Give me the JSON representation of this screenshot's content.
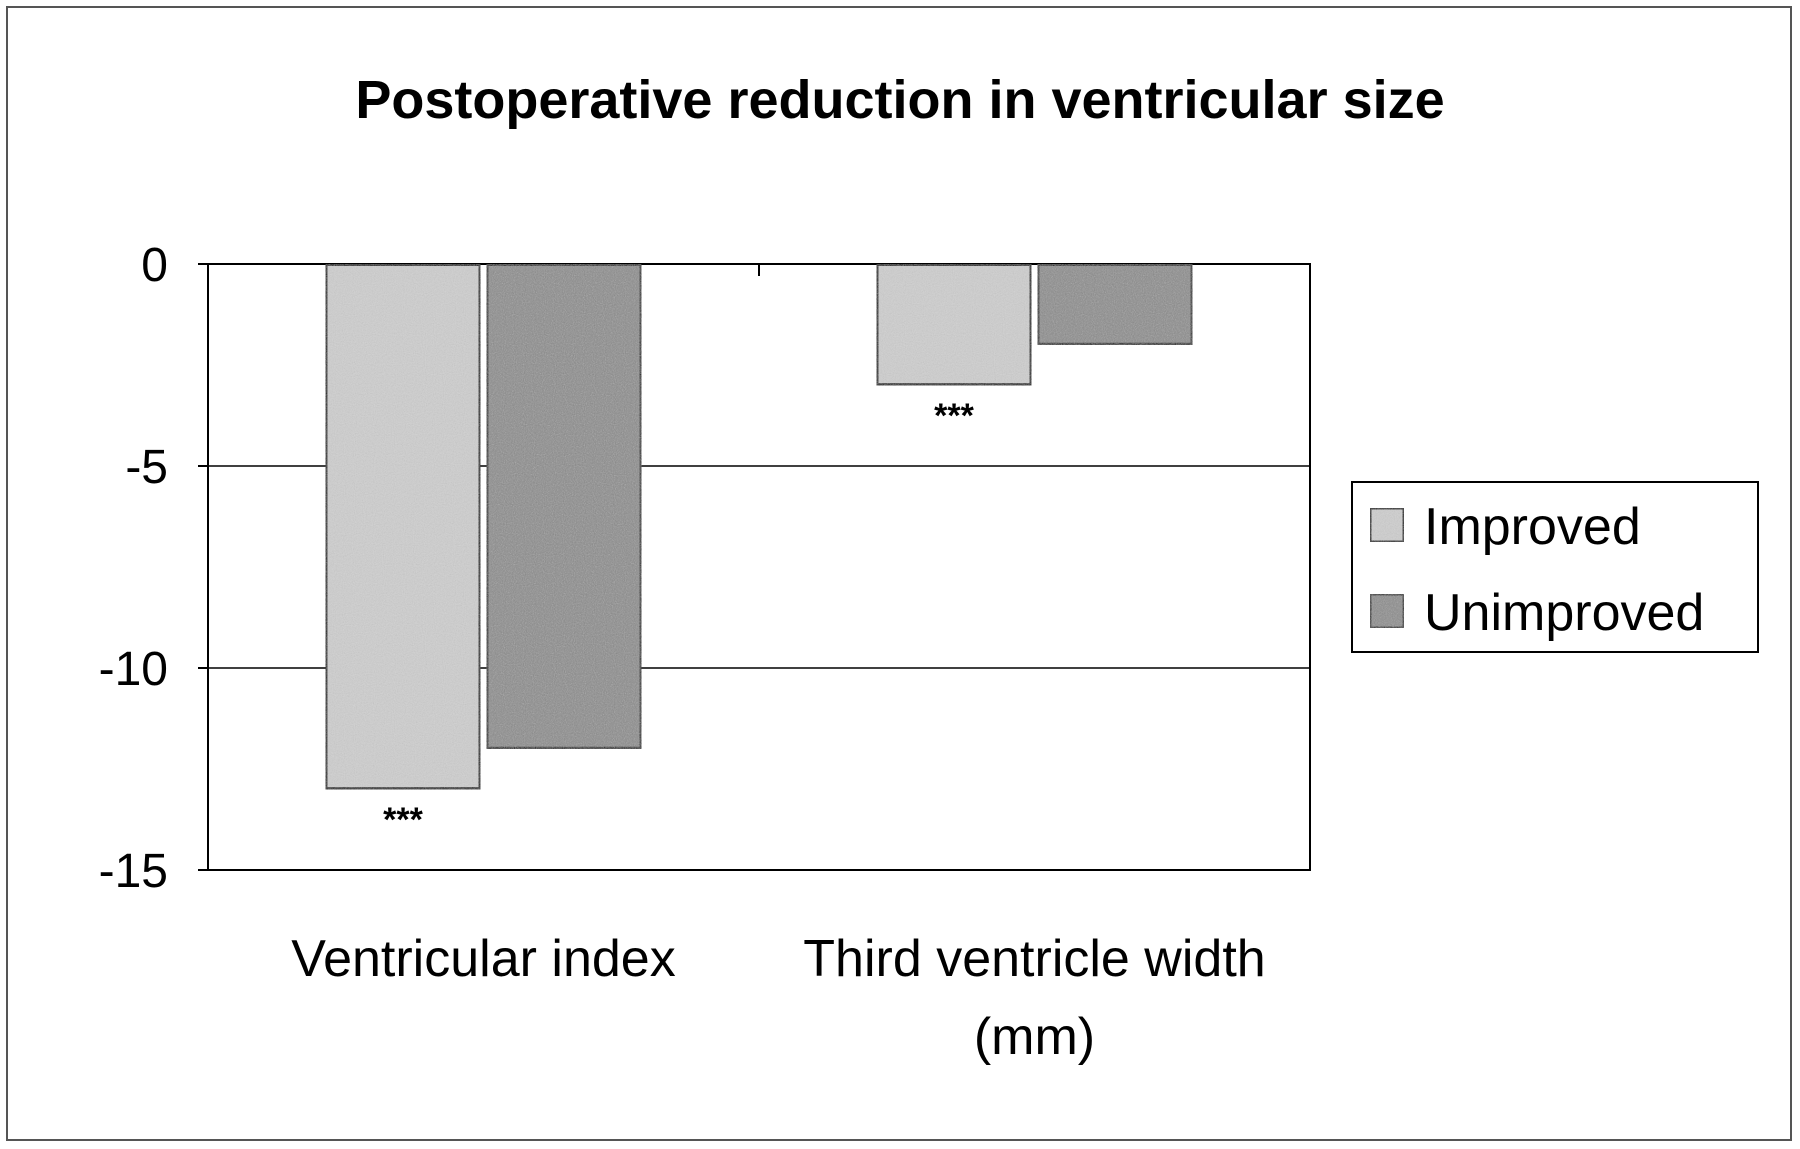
{
  "chart_data": {
    "type": "bar",
    "title": "Postoperative reduction in ventricular size",
    "xlabel": "",
    "ylabel": "",
    "categories": [
      [
        "Ventricular index"
      ],
      [
        "Third ventricle width",
        "(mm)"
      ]
    ],
    "series": [
      {
        "name": "Improved",
        "values": [
          -13,
          -3
        ],
        "color": "#cfcfcf",
        "annotations": [
          "***",
          "***"
        ]
      },
      {
        "name": "Unimproved",
        "values": [
          -12,
          -2
        ],
        "color": "#8a8a8a",
        "annotations": [
          "",
          ""
        ]
      }
    ],
    "ylim": [
      -15,
      0
    ],
    "yticks": [
      0,
      -5,
      -10,
      -15
    ],
    "grid": true,
    "legend_position": "right"
  }
}
